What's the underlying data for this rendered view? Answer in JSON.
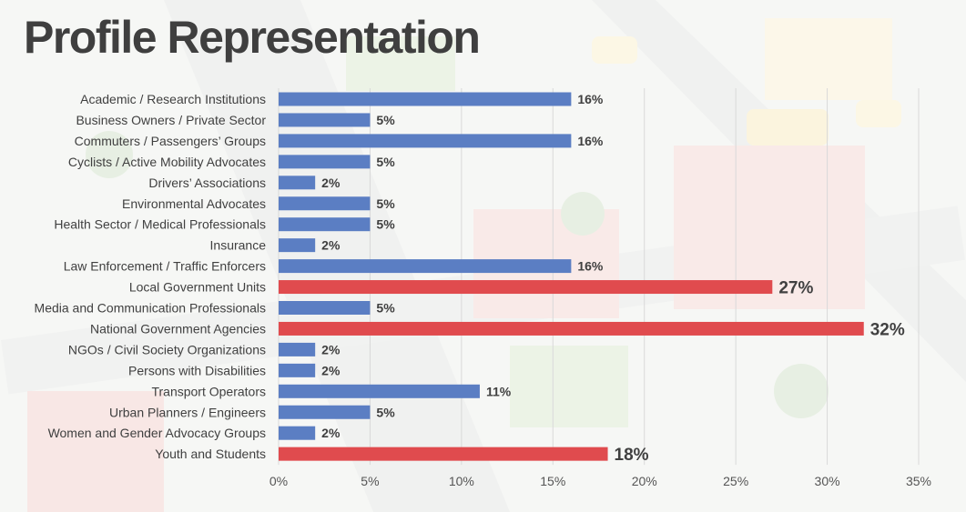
{
  "page": {
    "title": "Profile Representation"
  },
  "colors": {
    "normal": "#5b7ec3",
    "highlight": "#e04b4e",
    "grid": "#d9d9d9",
    "title": "#3f3f3f"
  },
  "chart_data": {
    "type": "bar",
    "orientation": "horizontal",
    "title": "Profile Representation",
    "xlabel": "",
    "ylabel": "",
    "xlim": [
      0,
      35
    ],
    "x_ticks": [
      "0%",
      "5%",
      "10%",
      "15%",
      "20%",
      "25%",
      "30%",
      "35%"
    ],
    "grid": "vertical",
    "legend": "none",
    "categories": [
      "Academic / Research Institutions",
      "Business Owners / Private Sector",
      "Commuters / Passengers’ Groups",
      "Cyclists / Active Mobility Advocates",
      "Drivers’ Associations",
      "Environmental Advocates",
      "Health Sector / Medical Professionals",
      "Insurance",
      "Law Enforcement / Traffic Enforcers",
      "Local Government Units",
      "Media and Communication Professionals",
      "National Government Agencies",
      "NGOs / Civil Society Organizations",
      "Persons with Disabilities",
      "Transport Operators",
      "Urban Planners / Engineers",
      "Women and Gender Advocacy Groups",
      "Youth and Students"
    ],
    "values": [
      16,
      5,
      16,
      5,
      2,
      5,
      5,
      2,
      16,
      27,
      5,
      32,
      2,
      2,
      11,
      5,
      2,
      18
    ],
    "data_labels": [
      "16%",
      "5%",
      "16%",
      "5%",
      "2%",
      "5%",
      "5%",
      "2%",
      "16%",
      "27%",
      "5%",
      "32%",
      "2%",
      "2%",
      "11%",
      "5%",
      "2%",
      "18%"
    ],
    "highlighted": [
      false,
      false,
      false,
      false,
      false,
      false,
      false,
      false,
      false,
      true,
      false,
      true,
      false,
      false,
      false,
      false,
      false,
      true
    ]
  }
}
